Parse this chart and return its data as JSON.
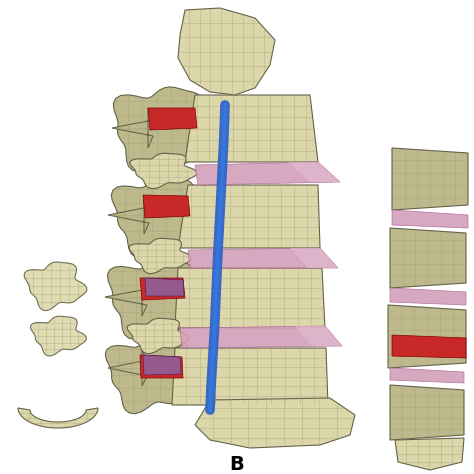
{
  "label": "B",
  "label_fontsize": 14,
  "label_fontweight": "bold",
  "background_color": "#ffffff",
  "figure_width": 4.74,
  "figure_height": 4.74,
  "dpi": 100,
  "colors": {
    "bone_light": [
      220,
      215,
      170
    ],
    "bone_mid": [
      190,
      185,
      140
    ],
    "bone_dark": [
      150,
      145,
      100
    ],
    "bone_shadow": [
      100,
      98,
      72
    ],
    "pink_disc": [
      210,
      160,
      185
    ],
    "pink_light": [
      225,
      185,
      205
    ],
    "red_ligament": [
      200,
      40,
      40
    ],
    "blue_cord": [
      50,
      100,
      200
    ],
    "purple_element": [
      140,
      100,
      160
    ],
    "white_bg": [
      255,
      255,
      255
    ],
    "mesh_line": [
      160,
      155,
      115
    ]
  }
}
